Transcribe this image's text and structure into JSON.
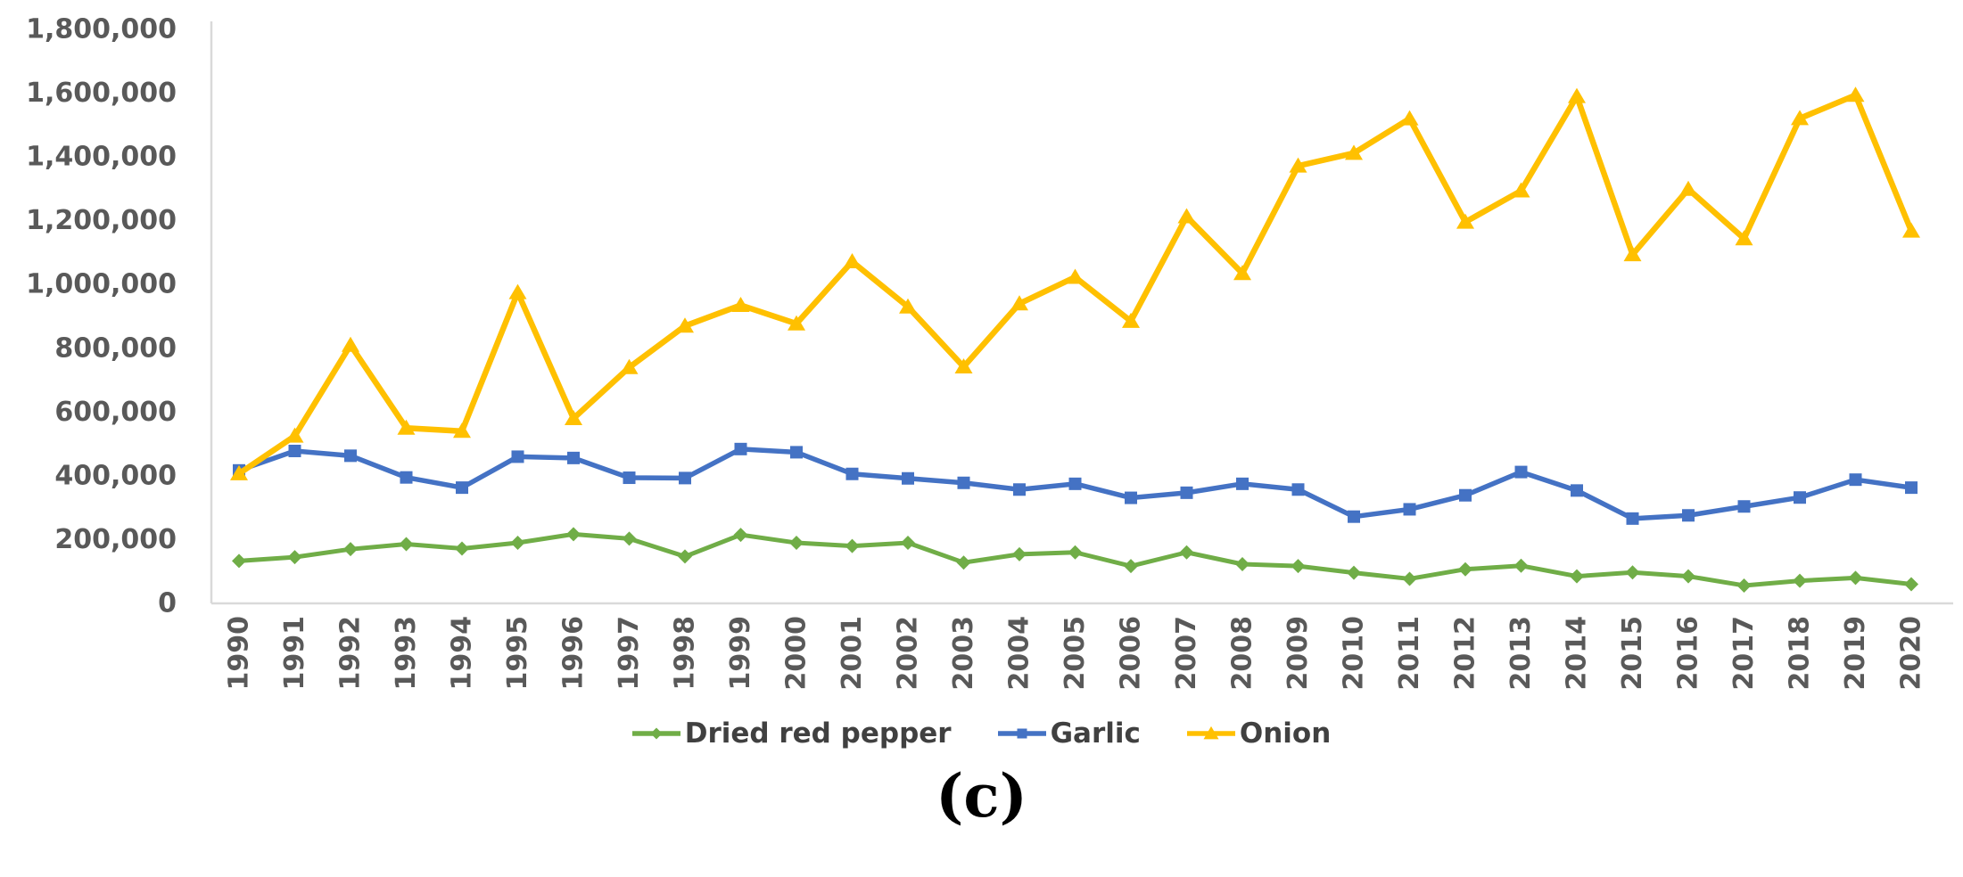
{
  "figure": {
    "caption": "(c)"
  },
  "chart_data": {
    "type": "line",
    "title": "",
    "xlabel": "",
    "ylabel": "",
    "x": [
      "1990",
      "1991",
      "1992",
      "1993",
      "1994",
      "1995",
      "1996",
      "1997",
      "1998",
      "1999",
      "2000",
      "2001",
      "2002",
      "2003",
      "2004",
      "2005",
      "2006",
      "2007",
      "2008",
      "2009",
      "2010",
      "2011",
      "2012",
      "2013",
      "2014",
      "2015",
      "2016",
      "2017",
      "2018",
      "2019",
      "2020"
    ],
    "series": [
      {
        "name": "Dried red pepper",
        "color": "#70AD47",
        "marker": "diamond",
        "values": [
          133000,
          145000,
          170000,
          186000,
          172000,
          190000,
          217000,
          203000,
          147000,
          215000,
          190000,
          180000,
          190000,
          128000,
          154000,
          160000,
          117000,
          160000,
          123000,
          117000,
          96000,
          77000,
          107000,
          118000,
          85000,
          97000,
          85000,
          56000,
          71000,
          80000,
          60000
        ]
      },
      {
        "name": "Garlic",
        "color": "#4472C4",
        "marker": "square",
        "values": [
          417000,
          478000,
          463000,
          395000,
          363000,
          460000,
          456000,
          394000,
          393000,
          484000,
          474000,
          406000,
          392000,
          378000,
          357000,
          375000,
          331000,
          347000,
          375000,
          357000,
          272000,
          295000,
          339000,
          412000,
          354000,
          266000,
          276000,
          304000,
          332000,
          388000,
          363000
        ]
      },
      {
        "name": "Onion",
        "color": "#FFC000",
        "marker": "triangle",
        "values": [
          407000,
          525000,
          810000,
          550000,
          540000,
          975000,
          580000,
          740000,
          870000,
          935000,
          877000,
          1072000,
          930000,
          742000,
          940000,
          1023000,
          885000,
          1213000,
          1035000,
          1372000,
          1412000,
          1520000,
          1196000,
          1294000,
          1590000,
          1094000,
          1299000,
          1144000,
          1521000,
          1594000,
          1168000
        ]
      }
    ],
    "y_axis": {
      "min": 0,
      "max": 1800000,
      "tick_step": 200000,
      "tick_labels": [
        "0",
        "200,000",
        "400,000",
        "600,000",
        "800,000",
        "1,000,000",
        "1,200,000",
        "1,400,000",
        "1,600,000",
        "1,800,000"
      ]
    },
    "x_axis": {
      "label_rotation_degrees": -90
    },
    "legend": {
      "position": "bottom",
      "items": [
        "Dried red pepper",
        "Garlic",
        "Onion"
      ]
    },
    "grid": false,
    "colors": {
      "axis_line": "#D9D9D9",
      "tick_label_text": "#595959",
      "legend_text": "#404040"
    }
  }
}
